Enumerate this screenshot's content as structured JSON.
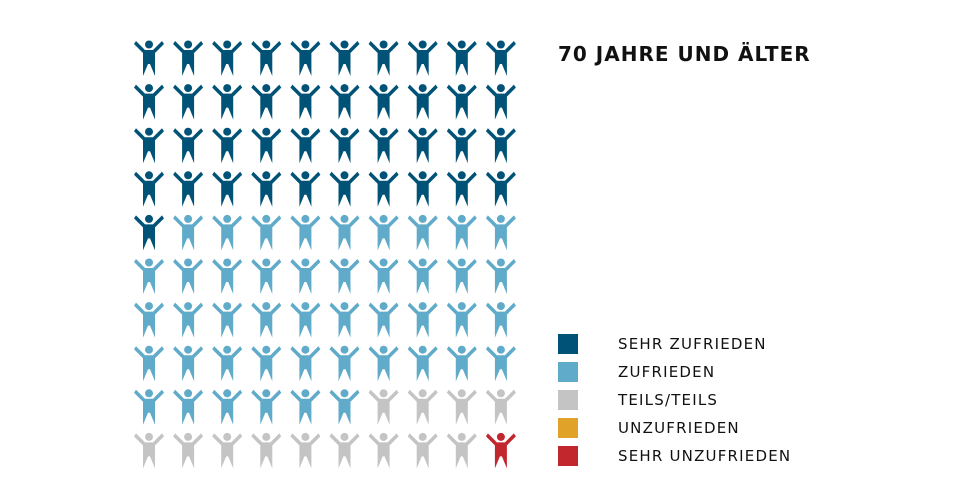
{
  "title": "70 JAHRE UND ÄLTER",
  "chart_data": {
    "type": "pictogram",
    "total_icons": 100,
    "columns": 10,
    "series": [
      {
        "name": "SEHR ZUFRIEDEN",
        "value": 41,
        "color": "#005377"
      },
      {
        "name": "ZUFRIEDEN",
        "value": 45,
        "color": "#60abc9"
      },
      {
        "name": "TEILS/TEILS",
        "value": 13,
        "color": "#c4c4c4"
      },
      {
        "name": "UNZUFRIEDEN",
        "value": 0,
        "color": "#e0a228"
      },
      {
        "name": "SEHR UNZUFRIEDEN",
        "value": 1,
        "color": "#c1272d"
      }
    ]
  }
}
